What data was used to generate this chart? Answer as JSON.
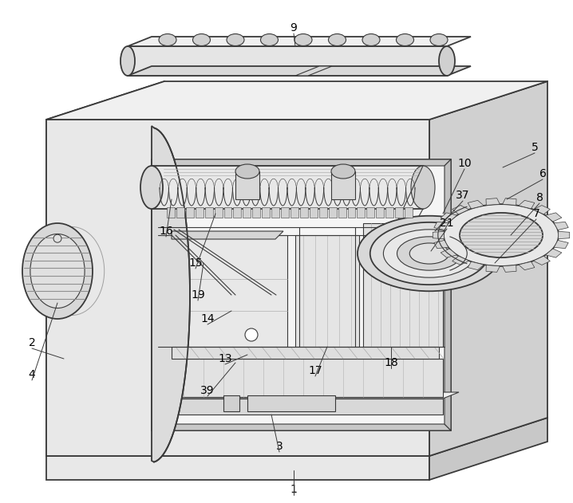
{
  "bg_color": "#ffffff",
  "lc": "#3a3a3a",
  "fc_light": "#f0f0f0",
  "fc_mid": "#e0e0e0",
  "fc_dark": "#c8c8c8",
  "fc_darker": "#b0b0b0",
  "figsize": [
    7.18,
    6.31
  ],
  "dpi": 100
}
